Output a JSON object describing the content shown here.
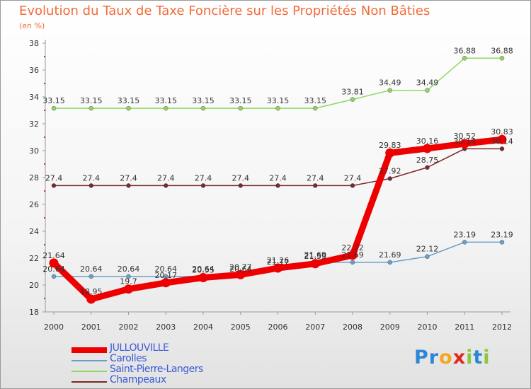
{
  "chart_data": {
    "type": "line",
    "title": "Evolution du Taux de Taxe Foncière sur les Propriétés Non Bâties",
    "ylabel": "(en %)",
    "xlabel": "",
    "categories": [
      "2000",
      "2001",
      "2002",
      "2003",
      "2004",
      "2005",
      "2006",
      "2007",
      "2008",
      "2009",
      "2010",
      "2011",
      "2012"
    ],
    "ylim": [
      18,
      38
    ],
    "yticks": [
      18,
      20,
      22,
      24,
      26,
      28,
      30,
      32,
      34,
      36,
      38
    ],
    "grid": false,
    "legend_position": "bottom-left",
    "series": [
      {
        "name": "JULLOUVILLE",
        "color": "#ee0000",
        "values": [
          21.64,
          18.95,
          19.7,
          20.17,
          20.55,
          20.77,
          21.26,
          21.59,
          22.22,
          29.83,
          30.16,
          30.52,
          30.83
        ],
        "labels": [
          "21.64",
          "18.95",
          "19.7",
          "20.17",
          "20.55",
          "20.77",
          "21.26",
          "21.59",
          "22.22",
          "29.83",
          "30.16",
          "30.52",
          "30.83"
        ]
      },
      {
        "name": "Carolles",
        "color": "#6a9fc9",
        "values": [
          20.64,
          20.64,
          20.64,
          20.64,
          20.64,
          20.64,
          21.17,
          21.69,
          21.69,
          21.69,
          22.12,
          23.19,
          23.19
        ],
        "labels": [
          "20.64",
          "20.64",
          "20.64",
          "20.64",
          "20.64",
          "20.64",
          "21.17",
          "21.69",
          "21.69",
          "21.69",
          "22.12",
          "23.19",
          "23.19"
        ]
      },
      {
        "name": "Saint-Pierre-Langers",
        "color": "#8fd860",
        "values": [
          33.15,
          33.15,
          33.15,
          33.15,
          33.15,
          33.15,
          33.15,
          33.15,
          33.81,
          34.49,
          34.49,
          36.88,
          36.88
        ],
        "labels": [
          "33.15",
          "33.15",
          "33.15",
          "33.15",
          "33.15",
          "33.15",
          "33.15",
          "33.15",
          "33.81",
          "34.49",
          "34.49",
          "36.88",
          "36.88"
        ]
      },
      {
        "name": "Champeaux",
        "color": "#7a2828",
        "values": [
          27.4,
          27.4,
          27.4,
          27.4,
          27.4,
          27.4,
          27.4,
          27.4,
          27.4,
          27.92,
          28.75,
          30.14,
          30.14
        ],
        "labels": [
          "27.4",
          "27.4",
          "27.4",
          "27.4",
          "27.4",
          "27.4",
          "27.4",
          "27.4",
          "27.4",
          "27.92",
          "28.75",
          "30.14",
          "30.14"
        ]
      }
    ]
  },
  "logo": {
    "letters": [
      "P",
      "r",
      "o",
      "x",
      "i",
      "t",
      "i"
    ],
    "colors": [
      "#2e86d6",
      "#2e86d6",
      "#f5a623",
      "#e0271f",
      "#8cc63f",
      "#2e86d6",
      "#8cc63f"
    ]
  }
}
